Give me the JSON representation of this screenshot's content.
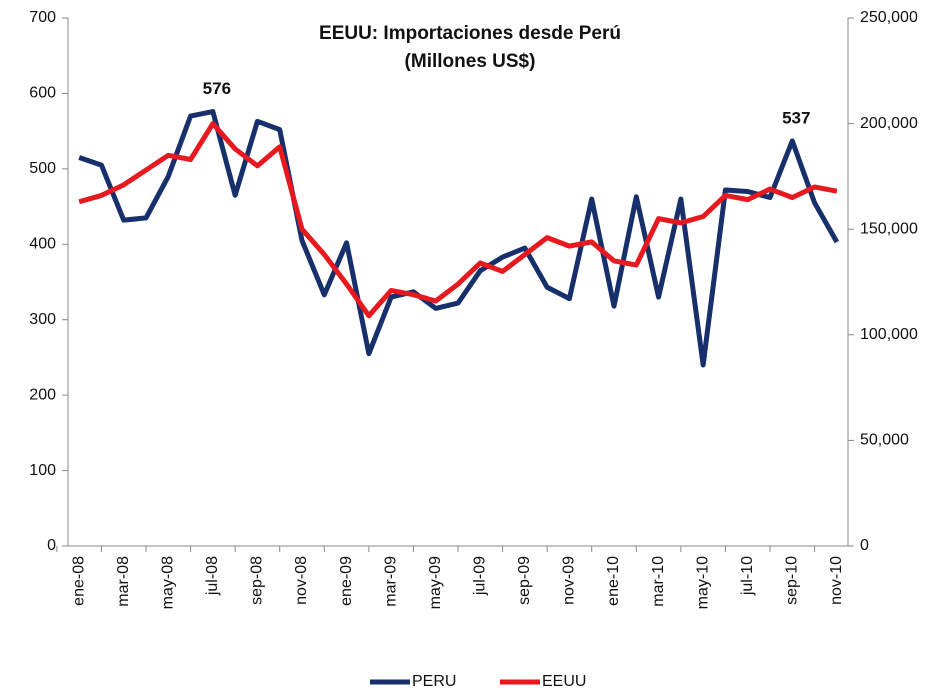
{
  "chart_data": {
    "type": "line",
    "title": "EEUU: Importaciones desde Perú",
    "subtitle": "(Millones US$)",
    "categories": [
      "ene-08",
      null,
      "mar-08",
      null,
      "may-08",
      null,
      "jul-08",
      null,
      "sep-08",
      null,
      "nov-08",
      null,
      "ene-09",
      null,
      "mar-09",
      null,
      "may-09",
      null,
      "jul-09",
      null,
      "sep-09",
      null,
      "nov-09",
      null,
      "ene-10",
      null,
      "mar-10",
      null,
      "may-10",
      null,
      "jul-10",
      null,
      "sep-10",
      null,
      "nov-10"
    ],
    "series": [
      {
        "name": "PERU",
        "color": "#172f6b",
        "values": [
          515,
          505,
          432,
          435,
          490,
          570,
          576,
          465,
          563,
          552,
          405,
          333,
          402,
          255,
          330,
          337,
          315,
          322,
          365,
          383,
          395,
          343,
          328,
          460,
          318,
          463,
          330,
          460,
          240,
          472,
          470,
          462,
          537,
          455,
          403
        ],
        "data_labels": [
          6,
          32
        ]
      },
      {
        "name": "EEUU",
        "color": "#e8191e",
        "axis": "y2",
        "values": [
          163000,
          166000,
          171000,
          178000,
          185000,
          183000,
          200000,
          188000,
          180000,
          189000,
          150000,
          138000,
          124000,
          109000,
          121000,
          119000,
          116000,
          124000,
          134000,
          130000,
          138000,
          146000,
          142000,
          144000,
          135000,
          133000,
          155000,
          153000,
          156000,
          166000,
          164000,
          169000,
          165000,
          170000,
          168000
        ]
      }
    ],
    "ylim": [
      0,
      700
    ],
    "yticks": [
      0,
      100,
      200,
      300,
      400,
      500,
      600,
      700
    ],
    "y2lim": [
      0,
      250000
    ],
    "y2ticks": [
      0,
      {
        "value": 50000,
        "label": "50,000"
      },
      {
        "value": 100000,
        "label": "100,000"
      },
      {
        "value": 150000,
        "label": "150,000"
      },
      {
        "value": 200000,
        "label": "200,000"
      },
      {
        "value": 250000,
        "label": "250,000"
      }
    ],
    "grid": false,
    "legend": "bottom"
  }
}
